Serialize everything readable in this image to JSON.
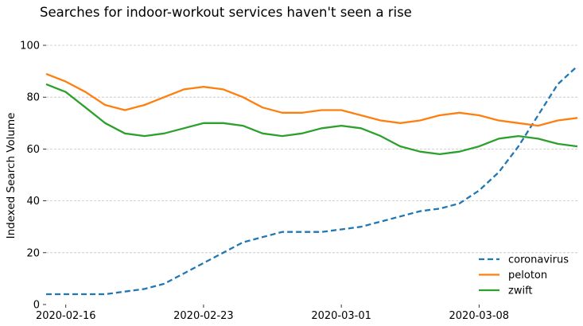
{
  "chart_data": {
    "type": "line",
    "title": "Searches for indoor-workout services haven't seen a rise",
    "xlabel": "",
    "ylabel": "Indexed Search Volume",
    "ylim": [
      0,
      100
    ],
    "yticks": [
      0,
      20,
      40,
      60,
      80,
      100
    ],
    "x_start": "2020-02-15",
    "xtick_labels": [
      "2020-02-16",
      "2020-02-23",
      "2020-03-01",
      "2020-03-08"
    ],
    "xtick_index": [
      1,
      8,
      15,
      22
    ],
    "grid": "horizontal",
    "legend_position": "bottom-right",
    "series": [
      {
        "name": "coronavirus",
        "color": "#1f77b4",
        "dash": "dashed",
        "values": [
          4,
          4,
          4,
          4,
          5,
          6,
          8,
          12,
          16,
          20,
          24,
          26,
          28,
          28,
          28,
          29,
          30,
          32,
          34,
          36,
          37,
          39,
          44,
          51,
          61,
          73,
          85,
          92
        ]
      },
      {
        "name": "peloton",
        "color": "#ff7f0e",
        "dash": "solid",
        "values": [
          89,
          86,
          82,
          77,
          75,
          77,
          80,
          83,
          84,
          83,
          80,
          76,
          74,
          74,
          75,
          75,
          73,
          71,
          70,
          71,
          73,
          74,
          73,
          71,
          70,
          69,
          71,
          72
        ]
      },
      {
        "name": "zwift",
        "color": "#2ca02c",
        "dash": "solid",
        "values": [
          85,
          82,
          76,
          70,
          66,
          65,
          66,
          68,
          70,
          70,
          69,
          66,
          65,
          66,
          68,
          69,
          68,
          65,
          61,
          59,
          58,
          59,
          61,
          64,
          65,
          64,
          62,
          61
        ]
      }
    ]
  }
}
